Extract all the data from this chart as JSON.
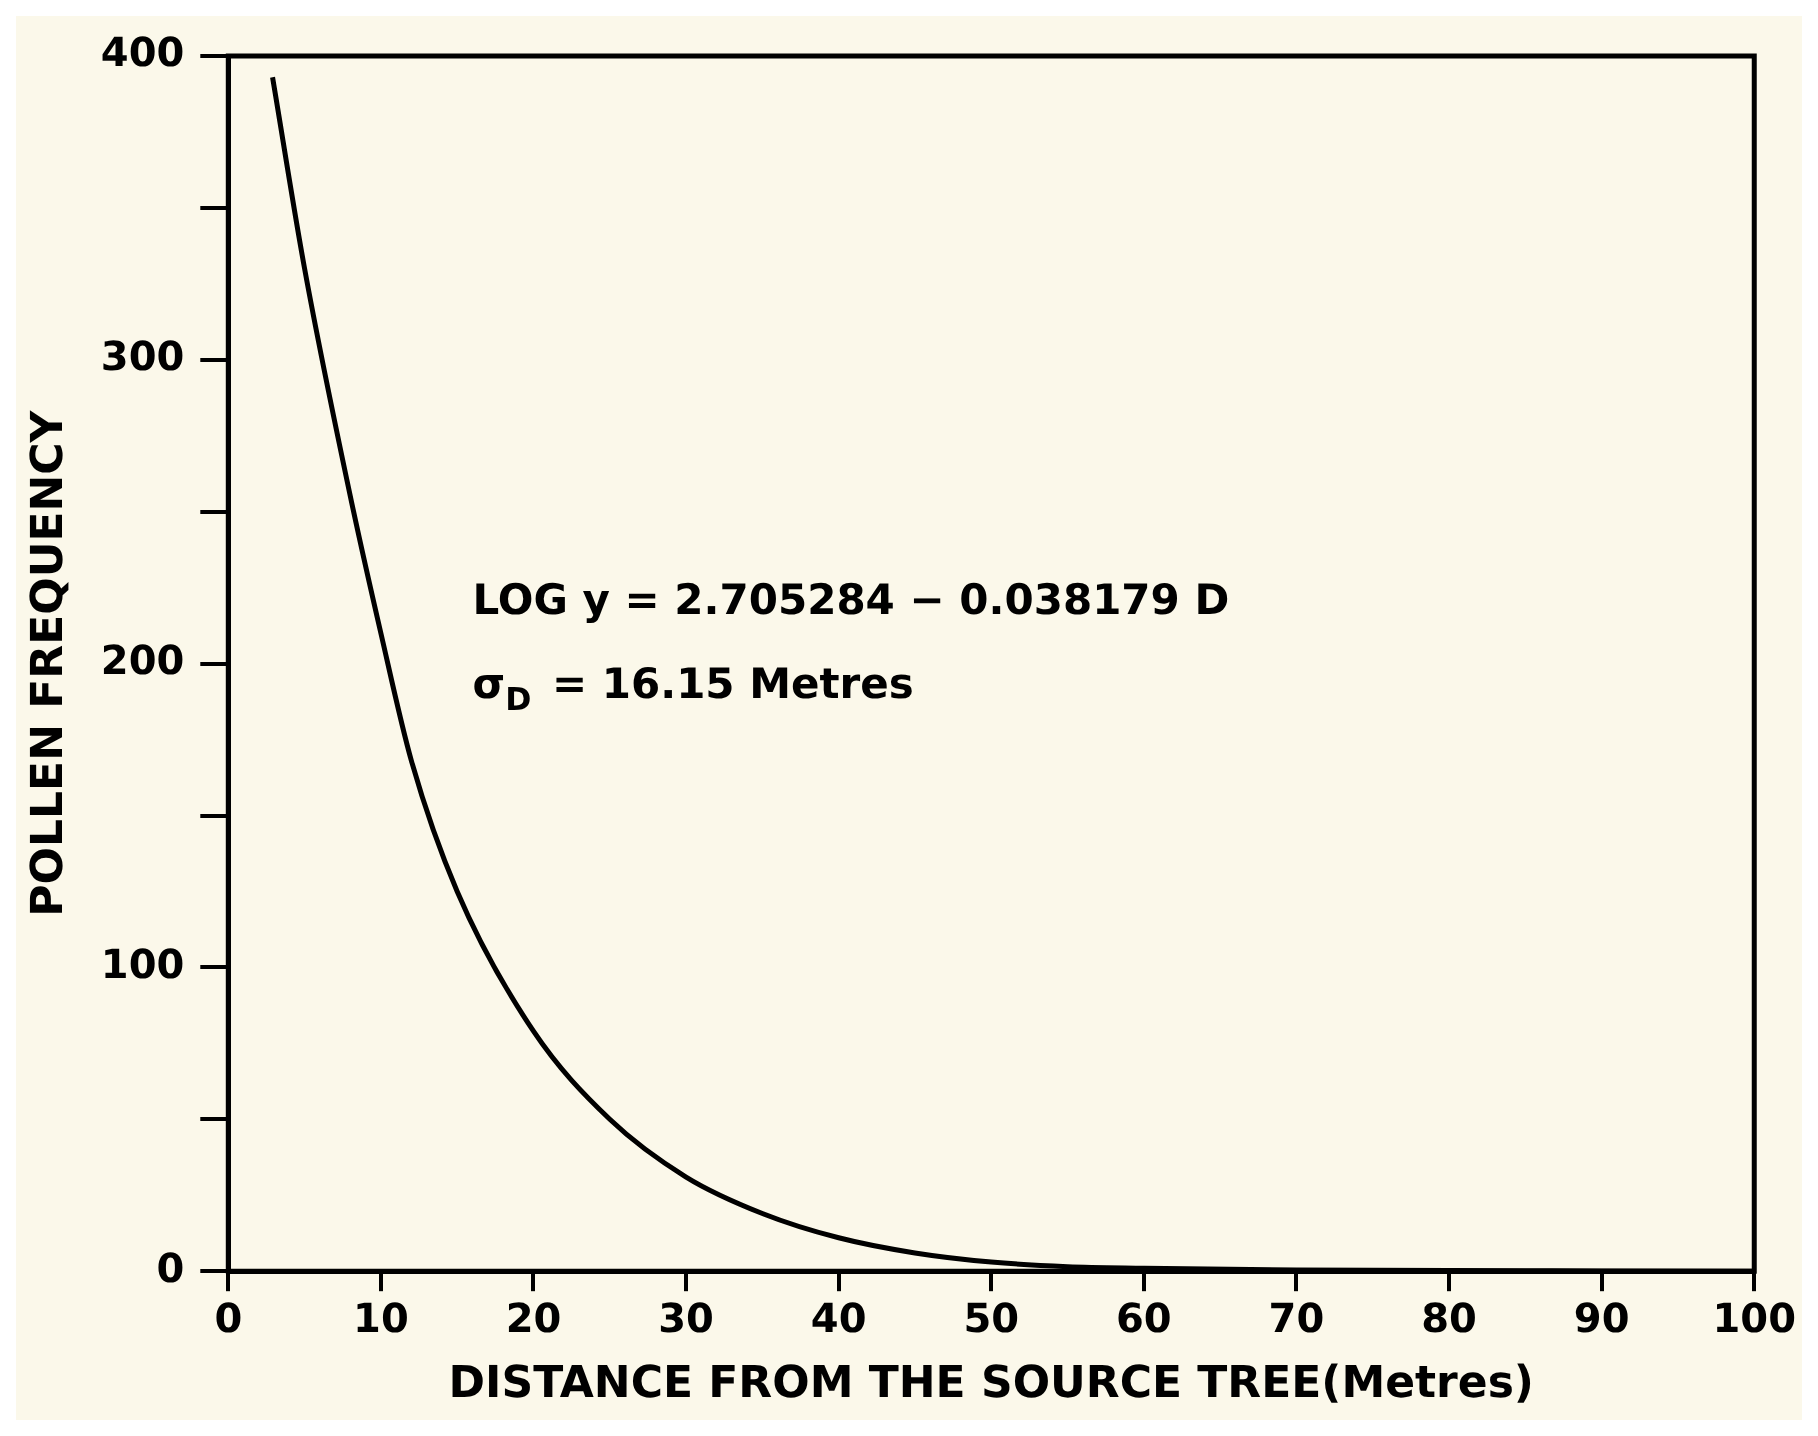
{
  "chart_data": {
    "type": "line",
    "xlabel": "DISTANCE FROM THE SOURCE TREE(Metres)",
    "ylabel": "POLLEN FREQUENCY",
    "x": [
      2.9,
      5,
      8,
      10,
      12,
      15,
      20,
      25,
      30,
      35,
      40,
      45,
      50,
      55,
      60,
      70,
      80,
      90,
      100
    ],
    "series": [
      {
        "color": "#000000",
        "values": [
          393,
          330,
          255,
          210,
          168,
          125,
          79,
          50,
          31,
          19,
          11,
          6,
          3,
          1.5,
          1,
          0.4,
          0.2,
          0.1,
          0
        ]
      }
    ],
    "xlim": [
      0,
      100
    ],
    "xticks": [
      0,
      10,
      20,
      30,
      40,
      50,
      60,
      70,
      80,
      90,
      100
    ],
    "ylim": [
      0,
      400
    ],
    "yticks": [
      0,
      {
        "value": 50,
        "label": null
      },
      100,
      {
        "value": 150,
        "label": null
      },
      200,
      {
        "value": 250,
        "label": null
      },
      300,
      {
        "value": 350,
        "label": null
      },
      400
    ],
    "annotations": [
      "LOG y = 2.705284 − 0.038179 D",
      "σ$_{D}$ = 16.15 Metres"
    ],
    "grid": false,
    "legend": false,
    "marker": "none",
    "line_style": "solid"
  }
}
